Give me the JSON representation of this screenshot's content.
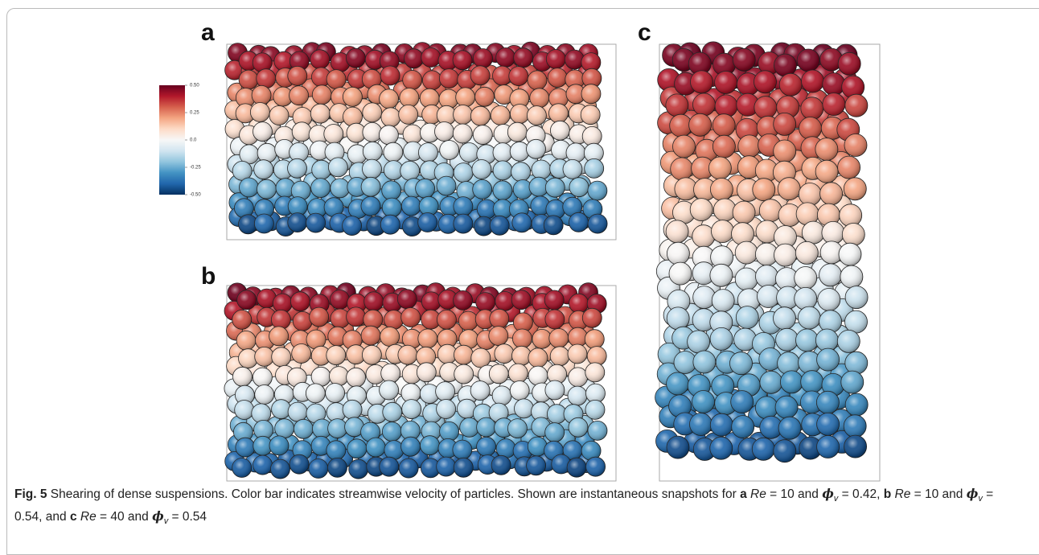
{
  "figure": {
    "panels": [
      {
        "label": "a"
      },
      {
        "label": "b"
      },
      {
        "label": "c"
      }
    ],
    "colorbar": {
      "lim": [
        -0.5,
        0.5
      ],
      "ticks": [
        {
          "value": 0.5,
          "label": "0.50"
        },
        {
          "value": 0.25,
          "label": "0.25"
        },
        {
          "value": 0,
          "label": "0.0"
        },
        {
          "value": -0.25,
          "label": "-0.25"
        },
        {
          "value": -0.5,
          "label": "-0.50"
        }
      ]
    },
    "caption": [
      {
        "text": "Fig. 5",
        "style": "bold"
      },
      {
        "text": " Shearing of dense suspensions. Color bar indicates streamwise velocity of particles. Shown are instantaneous snapshots for ",
        "style": "normal"
      },
      {
        "text": "a",
        "style": "bold"
      },
      {
        "text": " Re",
        "style": "italic"
      },
      {
        "text": " = 10 and ",
        "style": "normal"
      },
      {
        "text": "ϕ",
        "style": "bold-italic"
      },
      {
        "text": "v",
        "style": "subscript"
      },
      {
        "text": " = 0.42, ",
        "style": "normal"
      },
      {
        "text": "b",
        "style": "bold"
      },
      {
        "text": " Re",
        "style": "italic"
      },
      {
        "text": " = 10 and ",
        "style": "normal"
      },
      {
        "text": "ϕ",
        "style": "bold-italic"
      },
      {
        "text": "v",
        "style": "subscript"
      },
      {
        "text": " = 0.54, and ",
        "style": "normal"
      },
      {
        "text": "c",
        "style": "bold"
      },
      {
        "text": " Re",
        "style": "italic"
      },
      {
        "text": " = 40 and ",
        "style": "normal"
      },
      {
        "text": "ϕ",
        "style": "bold-italic"
      },
      {
        "text": "v",
        "style": "subscript"
      },
      {
        "text": " = 0.54",
        "style": "normal"
      }
    ]
  }
}
